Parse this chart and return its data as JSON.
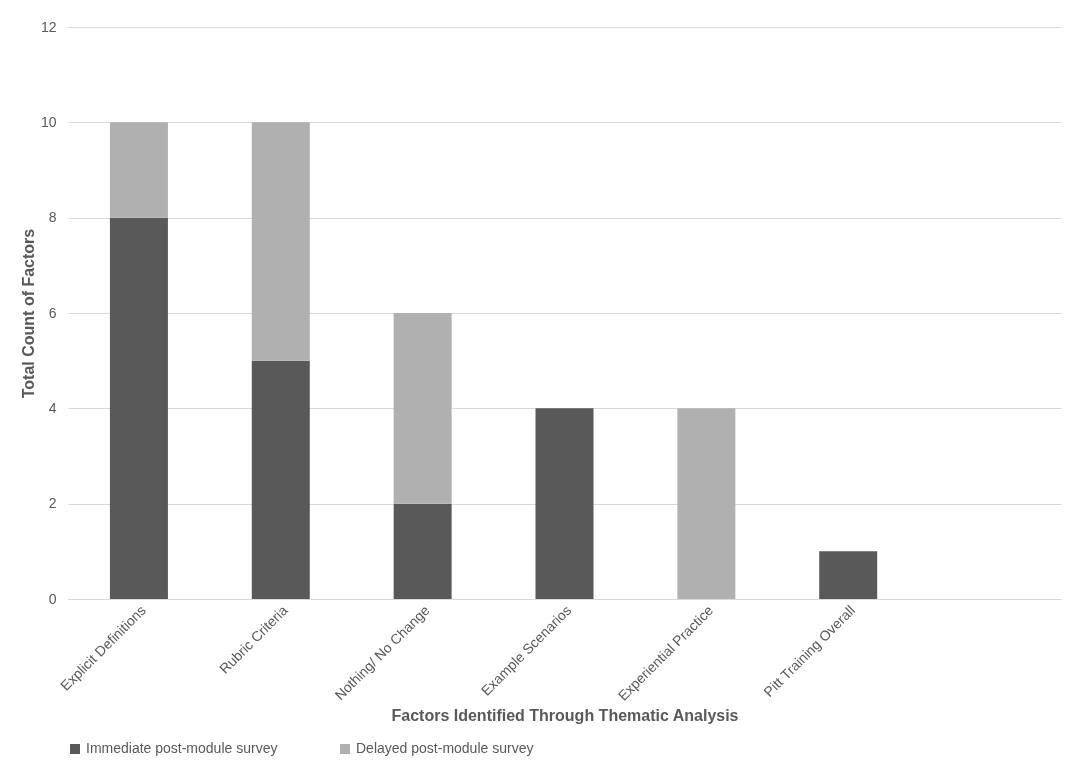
{
  "chart_data": {
    "type": "bar",
    "stacked": true,
    "xlabel": "Factors Identified Through Thematic Analysis",
    "ylabel": "Total Count of Factors",
    "categories": [
      "Explicit Definitions",
      "Rubric Criteria",
      "Nothing/ No Change",
      "Example Scenarios",
      "Experiential Practice",
      "Pitt Training Overall",
      null
    ],
    "series": [
      {
        "name": "Immediate post-module survey",
        "color": "#595959",
        "values": [
          8,
          5,
          2,
          4,
          0,
          1,
          null
        ]
      },
      {
        "name": "Delayed post-module survey",
        "color": "#b0b0b0",
        "values": [
          2,
          5,
          4,
          0,
          4,
          0,
          null
        ]
      }
    ],
    "ylim": [
      0,
      12
    ],
    "yticks": [
      0,
      2,
      4,
      6,
      8,
      10,
      12
    ],
    "grid": "y",
    "legend": "bottom"
  }
}
